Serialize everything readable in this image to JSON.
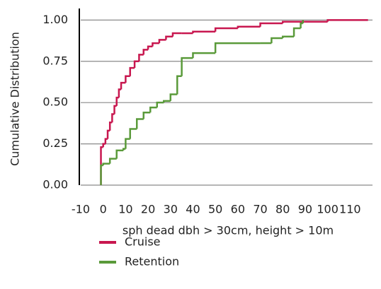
{
  "chart_data": {
    "type": "step",
    "xlabel": "sph dead dbh > 30cm, height > 10m",
    "ylabel": "Cumulative Distribution",
    "xlim": [
      -10,
      120
    ],
    "ylim": [
      0,
      1.07
    ],
    "xticks": [
      -10,
      0,
      10,
      20,
      30,
      40,
      50,
      60,
      70,
      80,
      90,
      100,
      110
    ],
    "yticks": [
      {
        "value": 0,
        "label": "0.00"
      },
      {
        "value": 0.25,
        "label": "0.25"
      },
      {
        "value": 0.5,
        "label": "0.50"
      },
      {
        "value": 0.75,
        "label": "0.75"
      },
      {
        "value": 1,
        "label": "1.00"
      }
    ],
    "grid": true,
    "series": [
      {
        "name": "Cruise",
        "color": "#c8174f",
        "x": [
          -1,
          0,
          1,
          2,
          3,
          4,
          5,
          6,
          7,
          8,
          10,
          12,
          14,
          16,
          18,
          20,
          22,
          25,
          28,
          31,
          35,
          40,
          50,
          60,
          70,
          80,
          90,
          100,
          118
        ],
        "values": [
          0.23,
          0.25,
          0.28,
          0.33,
          0.38,
          0.43,
          0.48,
          0.53,
          0.58,
          0.62,
          0.66,
          0.71,
          0.75,
          0.79,
          0.82,
          0.84,
          0.86,
          0.88,
          0.9,
          0.92,
          0.92,
          0.93,
          0.95,
          0.96,
          0.98,
          0.99,
          0.99,
          1.0,
          1.0
        ]
      },
      {
        "name": "Retention",
        "color": "#5a9a3a",
        "x": [
          -1,
          0,
          3,
          6,
          9,
          10,
          12,
          15,
          18,
          21,
          24,
          27,
          30,
          33,
          35,
          40,
          50,
          55,
          70,
          75,
          80,
          85,
          88,
          89
        ],
        "values": [
          0.12,
          0.13,
          0.16,
          0.21,
          0.22,
          0.28,
          0.34,
          0.4,
          0.44,
          0.47,
          0.5,
          0.51,
          0.55,
          0.66,
          0.77,
          0.8,
          0.86,
          0.86,
          0.86,
          0.89,
          0.9,
          0.95,
          0.98,
          1.0
        ]
      }
    ]
  }
}
